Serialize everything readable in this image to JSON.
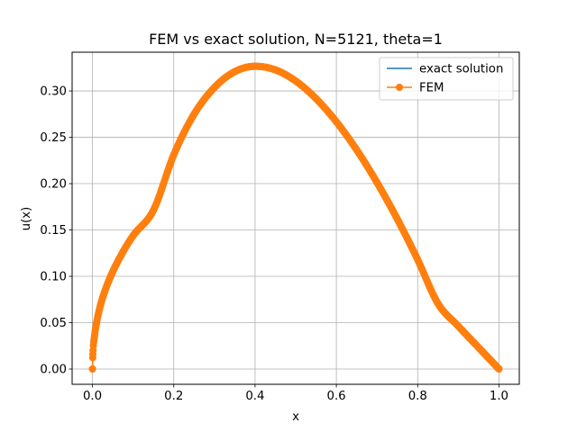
{
  "chart_data": {
    "type": "line",
    "title": "FEM vs exact solution, N=5121, theta=1",
    "xlabel": "x",
    "ylabel": "u(x)",
    "xlim": [
      -0.05,
      1.05
    ],
    "ylim": [
      -0.0165,
      0.3418
    ],
    "xticks": [
      0.0,
      0.2,
      0.4,
      0.6,
      0.8,
      1.0
    ],
    "xtick_labels": [
      "0.0",
      "0.2",
      "0.4",
      "0.6",
      "0.8",
      "1.0"
    ],
    "yticks": [
      0.0,
      0.05,
      0.1,
      0.15,
      0.2,
      0.25,
      0.3
    ],
    "ytick_labels": [
      "0.00",
      "0.05",
      "0.10",
      "0.15",
      "0.20",
      "0.25",
      "0.30"
    ],
    "grid": true,
    "legend_position": "upper right",
    "series": [
      {
        "name": "exact solution",
        "color": "#1f77b4",
        "marker": "none",
        "x": [
          0.0,
          0.001,
          0.005,
          0.01,
          0.02,
          0.03,
          0.05,
          0.075,
          0.1,
          0.15,
          0.2,
          0.25,
          0.3,
          0.35,
          0.4,
          0.45,
          0.5,
          0.55,
          0.6,
          0.65,
          0.7,
          0.75,
          0.8,
          0.85,
          0.9,
          0.95,
          1.0
        ],
        "y": [
          0.0,
          0.0159,
          0.0355,
          0.0497,
          0.0693,
          0.0835,
          0.1051,
          0.1263,
          0.1438,
          0.1713,
          0.2311,
          0.2749,
          0.3037,
          0.3208,
          0.3266,
          0.3227,
          0.3107,
          0.2917,
          0.2667,
          0.2364,
          0.2012,
          0.1617,
          0.118,
          0.0706,
          0.0462,
          0.0231,
          0.0
        ]
      },
      {
        "name": "FEM",
        "color": "#ff7f0e",
        "marker": "circle",
        "x": [
          0.0,
          0.001,
          0.005,
          0.01,
          0.02,
          0.03,
          0.05,
          0.075,
          0.1,
          0.15,
          0.2,
          0.25,
          0.3,
          0.35,
          0.4,
          0.45,
          0.5,
          0.55,
          0.6,
          0.65,
          0.7,
          0.75,
          0.8,
          0.85,
          0.9,
          0.95,
          1.0
        ],
        "y": [
          0.0,
          0.0159,
          0.0355,
          0.0497,
          0.0693,
          0.0835,
          0.1051,
          0.1263,
          0.1438,
          0.1713,
          0.2311,
          0.2749,
          0.3037,
          0.3208,
          0.3266,
          0.3227,
          0.3107,
          0.2917,
          0.2667,
          0.2364,
          0.2012,
          0.1617,
          0.118,
          0.0706,
          0.0462,
          0.0231,
          0.0
        ]
      }
    ]
  }
}
